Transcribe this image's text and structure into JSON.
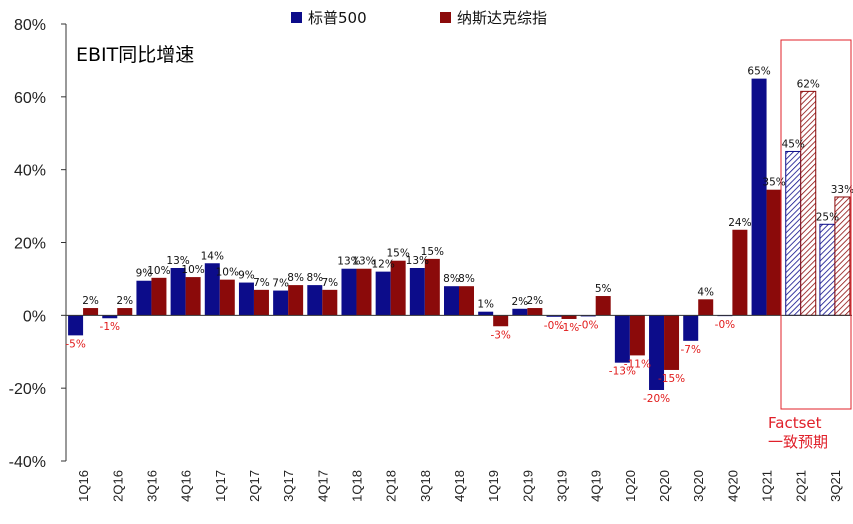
{
  "chart_data": {
    "type": "bar",
    "title": "EBIT同比增速",
    "categories": [
      "1Q16",
      "2Q16",
      "3Q16",
      "4Q16",
      "1Q17",
      "2Q17",
      "3Q17",
      "4Q17",
      "1Q18",
      "2Q18",
      "3Q18",
      "4Q18",
      "1Q19",
      "2Q19",
      "3Q19",
      "4Q19",
      "1Q20",
      "2Q20",
      "3Q20",
      "4Q20",
      "1Q21",
      "2Q21",
      "3Q21"
    ],
    "series": [
      {
        "name": "标普500",
        "color": "#0c0c8a",
        "values": [
          -5.5,
          -0.8,
          9.5,
          13,
          14.3,
          9,
          6.8,
          8.3,
          12.8,
          12,
          13,
          8,
          1,
          1.8,
          -0.4,
          -0.3,
          -13,
          -20.5,
          -7,
          -0.2,
          65,
          45,
          25
        ],
        "labels": [
          "-5%",
          "-1%",
          "9%",
          "13%",
          "14%",
          "9%",
          "7%",
          "8%",
          "13%",
          "12%",
          "13%",
          "8%",
          "1%",
          "2%",
          "-0%",
          "-0%",
          "-13%",
          "-20%",
          "-7%",
          "-0%",
          "65%",
          "45%",
          "25%"
        ]
      },
      {
        "name": "纳斯达克综指",
        "color": "#8b0a0a",
        "values": [
          2,
          2,
          10.3,
          10.5,
          9.8,
          7,
          8.3,
          7,
          12.8,
          15,
          15.5,
          8,
          -3,
          2,
          -1,
          5.3,
          -11,
          -15,
          4.4,
          23.5,
          34.5,
          61.5,
          32.5
        ],
        "labels": [
          "2%",
          "2%",
          "10%",
          "10%",
          "10%",
          "7%",
          "8%",
          "7%",
          "13%",
          "15%",
          "15%",
          "8%",
          "-3%",
          "2%",
          "-1%",
          "5%",
          "-11%",
          "-15%",
          "4%",
          "24%",
          "35%",
          "62%",
          "33%"
        ]
      }
    ],
    "forecast_categories": [
      "2Q21",
      "3Q21"
    ],
    "ylim": [
      -40,
      80
    ],
    "yticks": [
      -40,
      -20,
      0,
      20,
      40,
      60,
      80
    ],
    "ytick_labels": [
      "-40%",
      "-20%",
      "0%",
      "20%",
      "40%",
      "60%",
      "80%"
    ],
    "xlabel": "",
    "ylabel": "",
    "grid": false,
    "legend_position": "top",
    "negative_label_color": "#e11a1a",
    "forecast_box_color": "#e0202a",
    "annotation": [
      "Factset",
      "一致预期"
    ]
  }
}
